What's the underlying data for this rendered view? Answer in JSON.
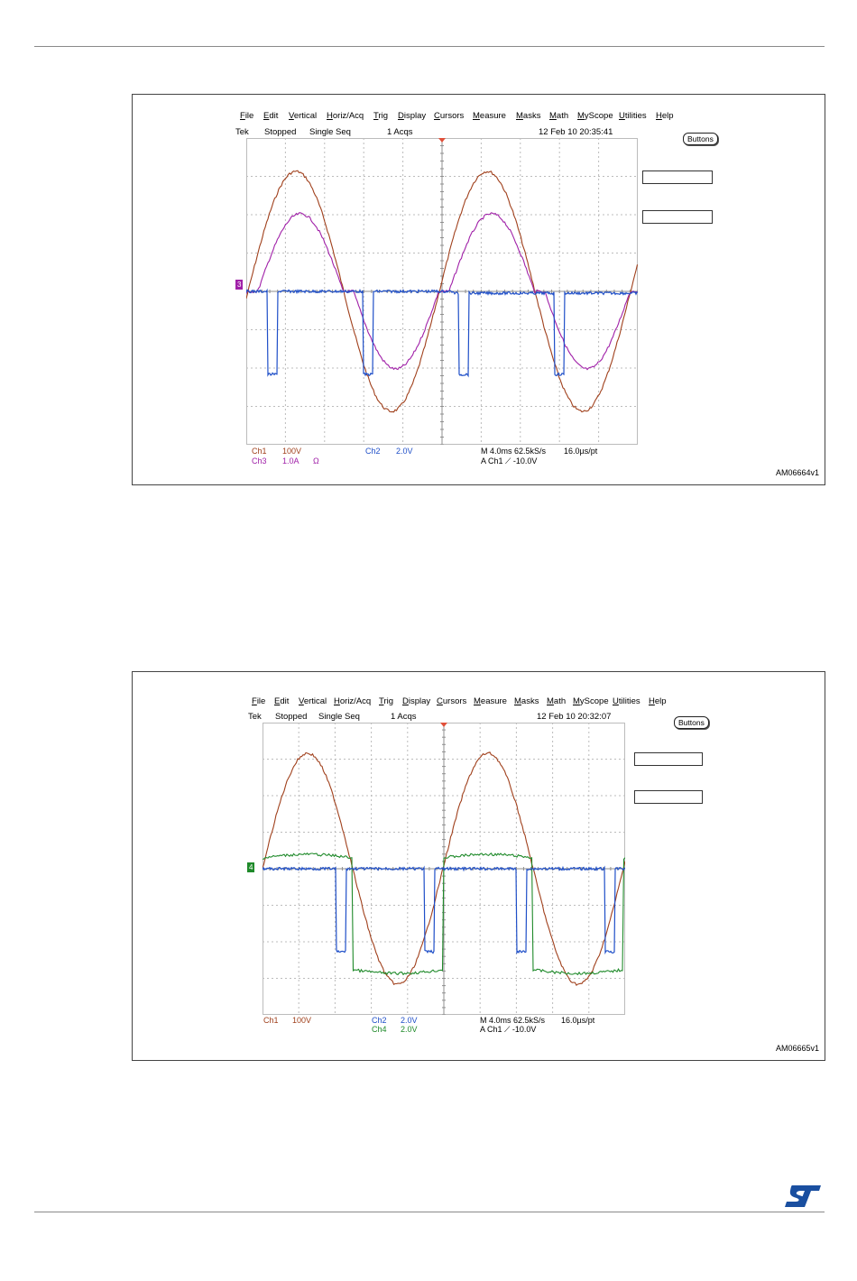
{
  "menu": [
    "File",
    "Edit",
    "Vertical",
    "Horiz/Acq",
    "Trig",
    "Display",
    "Cursors",
    "Measure",
    "Masks",
    "Math",
    "MyScope",
    "Utilities",
    "Help"
  ],
  "buttons_label": "Buttons",
  "colors": {
    "ch1": "#a0401c",
    "ch2": "#1f4fc8",
    "ch3": "#a020a8",
    "ch4": "#1f8a2a",
    "grid": "#bcbcbc"
  },
  "figures": [
    {
      "status": {
        "tek": "Tek",
        "state": "Stopped",
        "mode": "Single Seq",
        "acqs": "1 Acqs",
        "datetime": "12 Feb 10 20:35:41"
      },
      "marker": "3",
      "readout": {
        "ch1_label": "Ch1",
        "ch1_scale": "100V",
        "ch3_label": "Ch3",
        "ch3_scale": "1.0A",
        "ch3_unit": "Ω",
        "ch2_label": "Ch2",
        "ch2_scale": "2.0V",
        "timebase": "M 4.0ms 62.5kS/s",
        "res": "16.0µs/pt",
        "trig": "A  Ch1  ⟋  -10.0V"
      },
      "figure_id": "AM06664v1"
    },
    {
      "status": {
        "tek": "Tek",
        "state": "Stopped",
        "mode": "Single Seq",
        "acqs": "1 Acqs",
        "datetime": "12 Feb 10 20:32:07"
      },
      "marker": "4",
      "readout": {
        "ch1_label": "Ch1",
        "ch1_scale": "100V",
        "ch2_label": "Ch2",
        "ch2_scale": "2.0V",
        "ch4_label": "Ch4",
        "ch4_scale": "2.0V",
        "timebase": "M 4.0ms 62.5kS/s",
        "res": "16.0µs/pt",
        "trig": "A  Ch1  ⟋  -10.0V"
      },
      "figure_id": "AM06665v1"
    }
  ]
}
